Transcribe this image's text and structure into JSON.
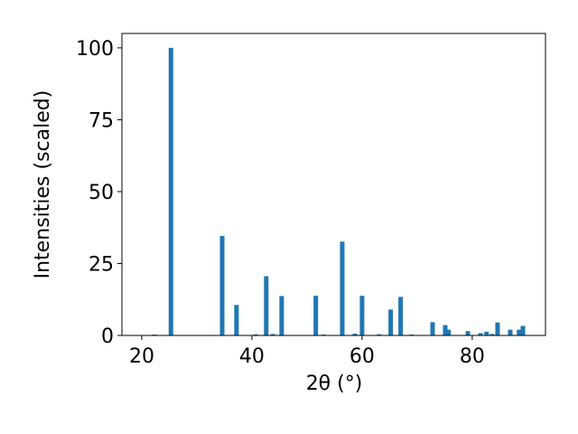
{
  "chart_data": {
    "type": "bar",
    "xlabel": "2θ (°)",
    "ylabel": "Intensities (scaled)",
    "x": [
      22.3,
      25.3,
      34.6,
      37.2,
      40.7,
      42.6,
      43.8,
      45.4,
      51.6,
      53.0,
      56.4,
      58.7,
      60.0,
      63.1,
      65.2,
      67.0,
      69.0,
      72.8,
      75.1,
      75.7,
      79.2,
      81.5,
      82.6,
      83.6,
      84.6,
      86.9,
      88.5,
      89.2
    ],
    "values": [
      0.3,
      100,
      34.6,
      10.6,
      0.4,
      20.6,
      0.5,
      13.7,
      13.8,
      0.3,
      32.6,
      0.6,
      13.8,
      0.4,
      9.0,
      13.4,
      0.3,
      4.6,
      3.6,
      2.0,
      1.5,
      0.8,
      1.3,
      0.5,
      4.5,
      2.0,
      2.0,
      3.3
    ],
    "color": "#1f77b4",
    "xlim": [
      16.4,
      93.3
    ],
    "ylim": [
      0,
      105
    ],
    "xticks": [
      20,
      40,
      60,
      80
    ],
    "yticks": [
      0,
      25,
      50,
      75,
      100
    ]
  }
}
